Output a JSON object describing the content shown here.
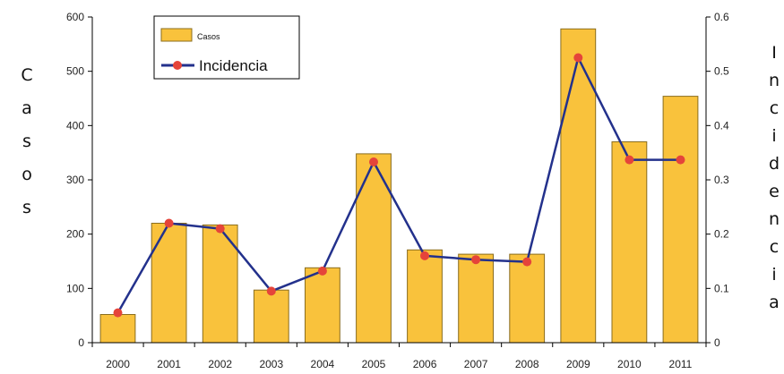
{
  "chart_data": {
    "type": "bar+line",
    "categories": [
      "2000",
      "2001",
      "2002",
      "2003",
      "2004",
      "2005",
      "2006",
      "2007",
      "2008",
      "2009",
      "2010",
      "2011"
    ],
    "series": [
      {
        "name": "Casos",
        "type": "bar",
        "axis": "left",
        "values": [
          52,
          220,
          217,
          97,
          138,
          348,
          171,
          163,
          163,
          578,
          370,
          454
        ]
      },
      {
        "name": "Incidencia",
        "type": "line",
        "axis": "right",
        "values": [
          0.055,
          0.22,
          0.21,
          0.095,
          0.132,
          0.333,
          0.16,
          0.153,
          0.149,
          0.525,
          0.337,
          0.337
        ]
      }
    ],
    "ylabel": "Casos",
    "y2label": "Incidencia",
    "ylim": [
      0,
      600
    ],
    "y2lim": [
      0,
      0.6
    ],
    "yticks": [
      "0",
      "100",
      "200",
      "300",
      "400",
      "500",
      "600"
    ],
    "y2ticks": [
      "0",
      "0.1",
      "0.2",
      "0.3",
      "0.4",
      "0.5",
      "0.6"
    ],
    "grid": false,
    "legend_position": "top-left",
    "colors": {
      "bar_fill": "#f9c23c",
      "bar_stroke": "#8a6d1e",
      "line": "#23318c",
      "marker": "#e5443a"
    }
  }
}
